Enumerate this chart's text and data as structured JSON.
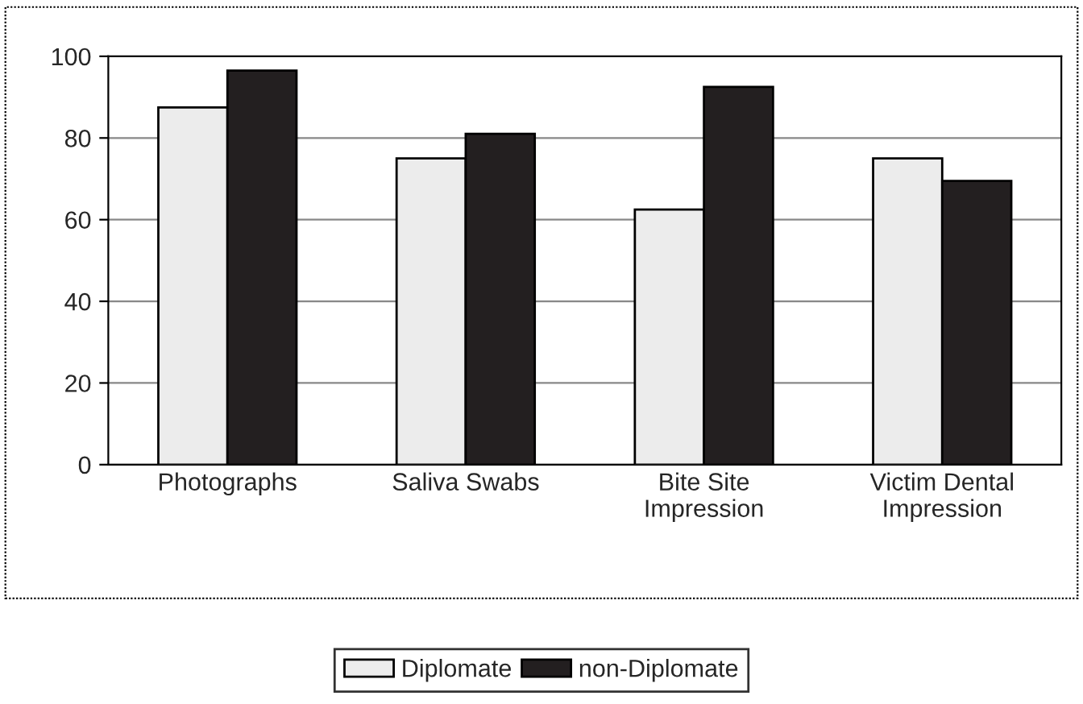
{
  "chart_data": {
    "type": "bar",
    "categories": [
      "Photographs",
      "Saliva Swabs",
      "Bite Site\nImpression",
      "Victim Dental\nImpression"
    ],
    "series": [
      {
        "name": "Diplomate",
        "color": "#ececec",
        "values": [
          87.5,
          75,
          62.5,
          75
        ]
      },
      {
        "name": "non-Diplomate",
        "color": "#231f20",
        "values": [
          96.5,
          81,
          92.5,
          69.5
        ]
      }
    ],
    "ylim": [
      0,
      100
    ],
    "yticks": [
      0,
      20,
      40,
      60,
      80,
      100
    ],
    "grid": "y",
    "legend": "bottom"
  }
}
